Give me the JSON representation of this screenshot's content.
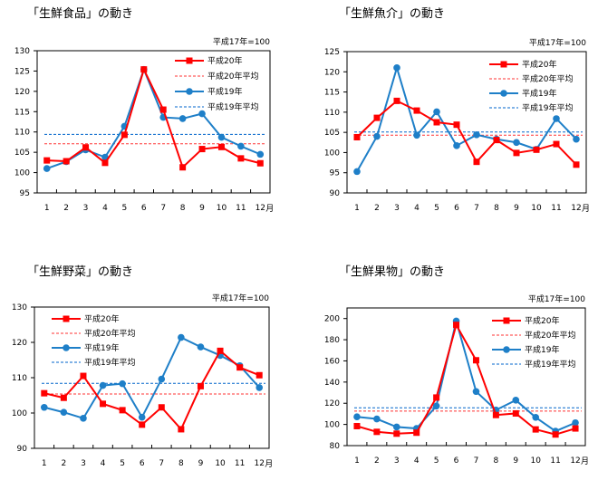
{
  "chart_data": [
    {
      "type": "line",
      "title": "「生鮮食品」の動き",
      "base_note": "平成17年=100",
      "x_unit": "月",
      "categories": [
        "1",
        "2",
        "3",
        "4",
        "5",
        "6",
        "7",
        "8",
        "9",
        "10",
        "11",
        "12"
      ],
      "ylim": [
        95,
        130
      ],
      "yticks": [
        95,
        100,
        105,
        110,
        115,
        120,
        125,
        130
      ],
      "series": [
        {
          "name": "平成20年",
          "color": "#ff0000",
          "marker": "square",
          "values": [
            103.0,
            102.8,
            106.2,
            102.4,
            109.3,
            125.4,
            115.5,
            101.3,
            105.8,
            106.3,
            103.5,
            102.3
          ]
        },
        {
          "name": "平成19年",
          "color": "#1e7fc8",
          "marker": "circle",
          "values": [
            101.0,
            102.7,
            105.6,
            103.8,
            111.4,
            125.4,
            113.6,
            113.3,
            114.5,
            108.7,
            106.5,
            104.5
          ]
        }
      ],
      "averages": [
        {
          "name": "平成20年平均",
          "color": "#ff3333",
          "value": 107.1
        },
        {
          "name": "平成19年平均",
          "color": "#0066cc",
          "value": 109.4
        }
      ]
    },
    {
      "type": "line",
      "title": "「生鮮魚介」の動き",
      "base_note": "平成17年=100",
      "x_unit": "月",
      "categories": [
        "1",
        "2",
        "3",
        "4",
        "5",
        "6",
        "7",
        "8",
        "9",
        "10",
        "11",
        "12"
      ],
      "ylim": [
        90,
        125
      ],
      "yticks": [
        90,
        95,
        100,
        105,
        110,
        115,
        120,
        125
      ],
      "series": [
        {
          "name": "平成20年",
          "color": "#ff0000",
          "marker": "square",
          "values": [
            103.8,
            108.6,
            112.8,
            110.4,
            107.5,
            106.9,
            97.7,
            103.1,
            99.9,
            100.7,
            102.1,
            97.0
          ]
        },
        {
          "name": "平成19年",
          "color": "#1e7fc8",
          "marker": "circle",
          "values": [
            95.3,
            104.0,
            121.0,
            104.3,
            110.1,
            101.7,
            104.4,
            103.3,
            102.5,
            100.8,
            108.4,
            103.3
          ]
        }
      ],
      "averages": [
        {
          "name": "平成20年平均",
          "color": "#ff3333",
          "value": 104.3
        },
        {
          "name": "平成19年平均",
          "color": "#0066cc",
          "value": 105.1
        }
      ]
    },
    {
      "type": "line",
      "title": "「生鮮野菜」の動き",
      "base_note": "平成17年=100",
      "x_unit": "月",
      "categories": [
        "1",
        "2",
        "3",
        "4",
        "5",
        "6",
        "7",
        "8",
        "9",
        "10",
        "11",
        "12"
      ],
      "ylim": [
        90,
        130
      ],
      "yticks": [
        90,
        100,
        110,
        120,
        130
      ],
      "series": [
        {
          "name": "平成20年",
          "color": "#ff0000",
          "marker": "square",
          "values": [
            105.6,
            104.3,
            110.5,
            102.6,
            100.8,
            96.7,
            101.6,
            95.4,
            107.6,
            117.6,
            112.9,
            110.7
          ]
        },
        {
          "name": "平成19年",
          "color": "#1e7fc8",
          "marker": "circle",
          "values": [
            101.6,
            100.2,
            98.5,
            107.8,
            108.3,
            98.8,
            109.6,
            121.4,
            118.7,
            116.3,
            113.4,
            107.2
          ]
        }
      ],
      "averages": [
        {
          "name": "平成20年平均",
          "color": "#ff3333",
          "value": 105.4
        },
        {
          "name": "平成19年平均",
          "color": "#0066cc",
          "value": 108.4
        }
      ]
    },
    {
      "type": "line",
      "title": "「生鮮果物」の動き",
      "base_note": "平成17年=100",
      "x_unit": "月",
      "categories": [
        "1",
        "2",
        "3",
        "4",
        "5",
        "6",
        "7",
        "8",
        "9",
        "10",
        "11",
        "12"
      ],
      "ylim": [
        80,
        210
      ],
      "yticks": [
        80,
        100,
        120,
        140,
        160,
        180,
        200
      ],
      "series": [
        {
          "name": "平成20年",
          "color": "#ff0000",
          "marker": "square",
          "values": [
            98.4,
            93.0,
            91.3,
            92.2,
            125.4,
            194.0,
            160.6,
            108.9,
            110.4,
            95.3,
            90.5,
            96.2
          ]
        },
        {
          "name": "平成19年",
          "color": "#1e7fc8",
          "marker": "circle",
          "values": [
            107.2,
            105.2,
            97.6,
            96.2,
            117.4,
            197.7,
            131.1,
            113.6,
            122.9,
            106.7,
            93.6,
            101.6
          ]
        }
      ],
      "averages": [
        {
          "name": "平成20年平均",
          "color": "#ff3333",
          "value": 112.6
        },
        {
          "name": "平成19年平均",
          "color": "#0066cc",
          "value": 115.7
        }
      ]
    }
  ]
}
